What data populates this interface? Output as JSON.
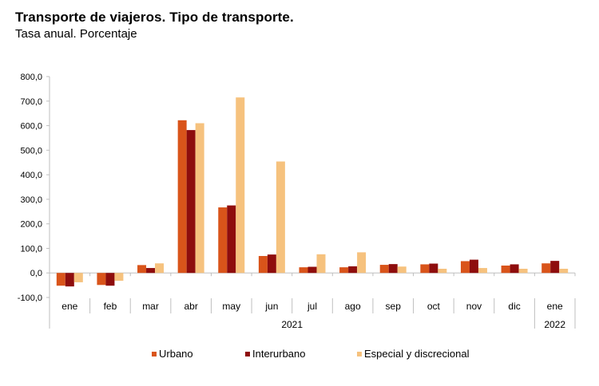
{
  "header": {
    "title": "Transporte de viajeros. Tipo de transporte.",
    "subtitle": "Tasa anual. Porcentaje"
  },
  "chart_data": {
    "type": "bar",
    "title": "Transporte de viajeros. Tipo de transporte.",
    "subtitle": "Tasa anual. Porcentaje",
    "xlabel": "",
    "ylabel": "",
    "ylim": [
      -100,
      800
    ],
    "yticks": [
      800,
      700,
      600,
      500,
      400,
      300,
      200,
      100,
      0,
      -100
    ],
    "ytick_labels": [
      "800,0",
      "700,0",
      "600,0",
      "500,0",
      "400,0",
      "300,0",
      "200,0",
      "100,0",
      "0,0",
      "-100,0"
    ],
    "categories": [
      "ene",
      "feb",
      "mar",
      "abr",
      "may",
      "jun",
      "jul",
      "ago",
      "sep",
      "oct",
      "nov",
      "dic",
      "ene"
    ],
    "year_groups": [
      {
        "label": "2021",
        "start": 0,
        "end": 11
      },
      {
        "label": "2022",
        "start": 12,
        "end": 12
      }
    ],
    "series": [
      {
        "name": "Urbano",
        "color": "#D9541A",
        "values": [
          -52,
          -49,
          32,
          622,
          267,
          69,
          23,
          23,
          33,
          35,
          48,
          30,
          39
        ]
      },
      {
        "name": "Interurbano",
        "color": "#8E0D0D",
        "values": [
          -55,
          -52,
          20,
          582,
          275,
          75,
          25,
          27,
          36,
          38,
          54,
          35,
          49
        ]
      },
      {
        "name": "Especial y discrecional",
        "color": "#F6C27E",
        "values": [
          -38,
          -32,
          39,
          610,
          715,
          454,
          76,
          84,
          26,
          17,
          20,
          17,
          17
        ]
      }
    ],
    "grid": false,
    "legend": "bottom"
  }
}
